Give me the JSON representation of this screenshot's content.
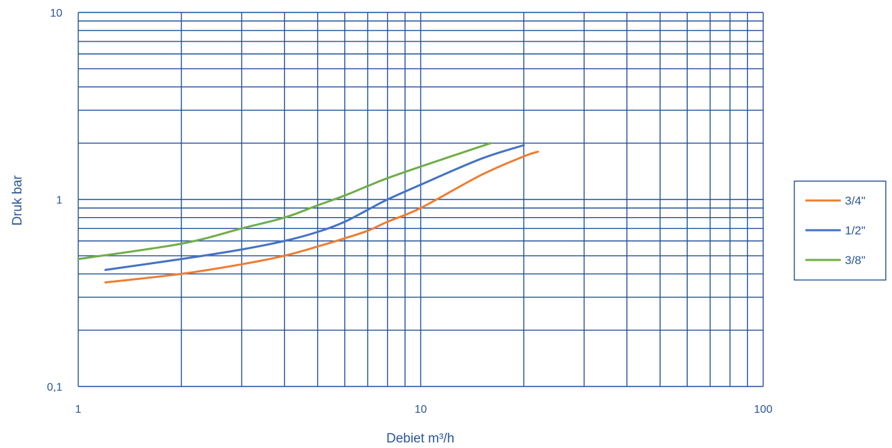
{
  "chart_data": {
    "type": "line",
    "xscale": "log",
    "yscale": "log",
    "xlim": [
      1,
      100
    ],
    "ylim": [
      0.1,
      10
    ],
    "grid": true,
    "xlabel": "Debiet m³/h",
    "ylabel": "Druk bar",
    "x_ticks": [
      {
        "value": 1,
        "label": "1"
      },
      {
        "value": 10,
        "label": "10"
      },
      {
        "value": 100,
        "label": "100"
      }
    ],
    "y_ticks": [
      {
        "value": 10,
        "label": "10"
      },
      {
        "value": 1,
        "label": "1"
      },
      {
        "value": 0.1,
        "label": "0,1"
      }
    ],
    "legend_position": "right",
    "series": [
      {
        "name": "3/4\"",
        "color": "#ed7d31",
        "points": [
          [
            1.2,
            0.36
          ],
          [
            2,
            0.4
          ],
          [
            3,
            0.45
          ],
          [
            4,
            0.5
          ],
          [
            5,
            0.56
          ],
          [
            6,
            0.62
          ],
          [
            7,
            0.68
          ],
          [
            8,
            0.76
          ],
          [
            10,
            0.9
          ],
          [
            15,
            1.35
          ],
          [
            20,
            1.7
          ],
          [
            22,
            1.8
          ]
        ]
      },
      {
        "name": "1/2\"",
        "color": "#4472c4",
        "points": [
          [
            1.2,
            0.42
          ],
          [
            2,
            0.48
          ],
          [
            3,
            0.54
          ],
          [
            4,
            0.6
          ],
          [
            5,
            0.67
          ],
          [
            6,
            0.76
          ],
          [
            7,
            0.88
          ],
          [
            8,
            1.0
          ],
          [
            10,
            1.2
          ],
          [
            15,
            1.65
          ],
          [
            20,
            1.95
          ]
        ]
      },
      {
        "name": "3/8\"",
        "color": "#70ad47",
        "points": [
          [
            1,
            0.48
          ],
          [
            2,
            0.58
          ],
          [
            3,
            0.7
          ],
          [
            4,
            0.8
          ],
          [
            5,
            0.93
          ],
          [
            6,
            1.05
          ],
          [
            7,
            1.18
          ],
          [
            8,
            1.3
          ],
          [
            10,
            1.5
          ],
          [
            16,
            2.0
          ]
        ]
      }
    ]
  }
}
